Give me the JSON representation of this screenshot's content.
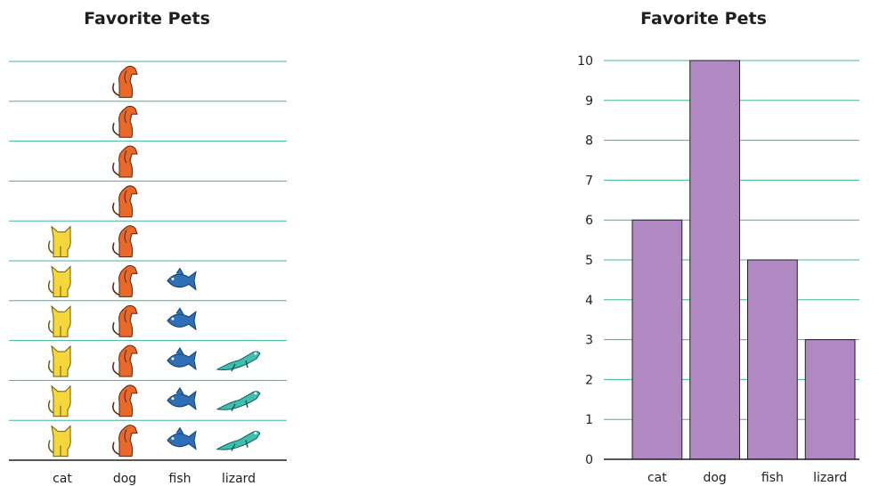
{
  "chart_data": [
    {
      "type": "pictograph",
      "title": "Favorite Pets",
      "categories": [
        "cat",
        "dog",
        "fish",
        "lizard"
      ],
      "values": [
        6,
        10,
        5,
        3
      ],
      "icons": [
        "cat-icon",
        "dog-icon",
        "fish-icon",
        "lizard-icon"
      ],
      "icon_colors": [
        "#f5d63c",
        "#e8692a",
        "#2f6fb8",
        "#3fbfb0"
      ],
      "grid": true
    },
    {
      "type": "bar",
      "title": "Favorite Pets",
      "categories": [
        "cat",
        "dog",
        "fish",
        "lizard"
      ],
      "values": [
        6,
        10,
        5,
        3
      ],
      "xlabel": "",
      "ylabel": "",
      "ylim": [
        0,
        10
      ],
      "yticks": [
        "0",
        "1",
        "2",
        "3",
        "4",
        "5",
        "6",
        "7",
        "8",
        "9",
        "10"
      ],
      "bar_color": "#b088c2",
      "grid_color": "#3fb59a",
      "grid": true
    }
  ]
}
